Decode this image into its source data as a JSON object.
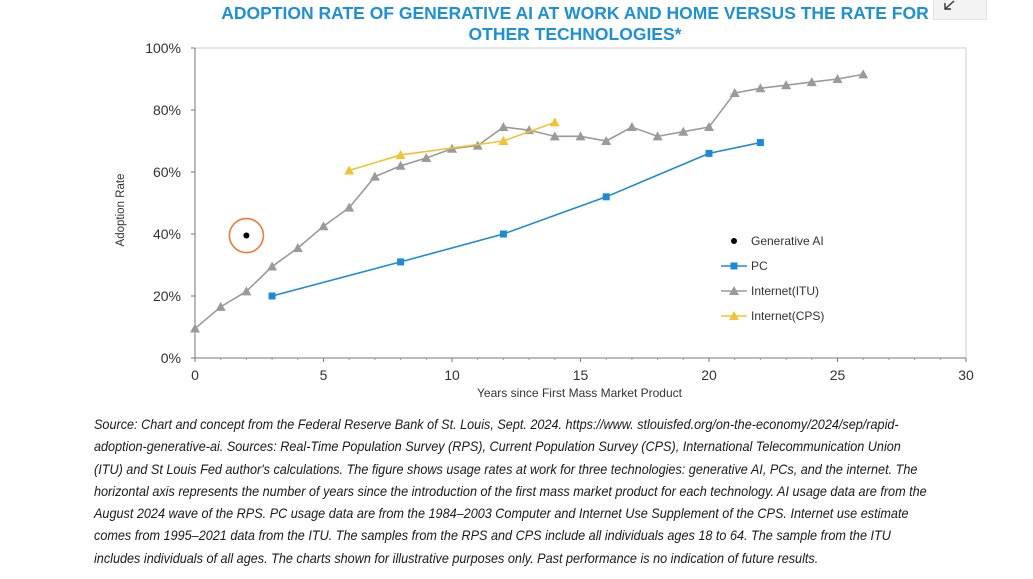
{
  "colors": {
    "title": "#1e90d6",
    "generative_ai": "#000000",
    "pc": "#1e8ad6",
    "internet_itu": "#9a9a9a",
    "internet_cps": "#f1c232",
    "highlight_circle": "#f07a35"
  },
  "icons": {
    "expand": "expand-arrow-icon"
  },
  "chart_data": {
    "type": "line",
    "title": "ADOPTION RATE OF GENERATIVE AI AT WORK AND HOME VERSUS THE RATE FOR OTHER TECHNOLOGIES*",
    "xlabel": "Years since First Mass Market Product",
    "ylabel": "Adoption Rate",
    "xlim": [
      0,
      30
    ],
    "ylim": [
      0,
      100
    ],
    "xticks": [
      "0",
      "5",
      "10",
      "15",
      "20",
      "25",
      "30"
    ],
    "xtick_values": [
      0,
      5,
      10,
      15,
      20,
      25,
      30
    ],
    "yticks": [
      "0%",
      "20%",
      "40%",
      "60%",
      "80%",
      "100%"
    ],
    "ytick_values": [
      0,
      20,
      40,
      60,
      80,
      100
    ],
    "legend_position": "center-right",
    "grid": false,
    "series": [
      {
        "name": "Generative AI",
        "marker": "circle",
        "line": false,
        "highlighted": true,
        "x": [
          2
        ],
        "y": [
          39.5
        ]
      },
      {
        "name": "PC",
        "marker": "square",
        "x": [
          3,
          8,
          12,
          16,
          20,
          22
        ],
        "y": [
          20,
          31,
          40,
          52,
          66,
          69.5
        ]
      },
      {
        "name": "Internet(ITU)",
        "marker": "triangle",
        "x": [
          0,
          1,
          2,
          3,
          4,
          5,
          6,
          7,
          8,
          9,
          10,
          11,
          12,
          13,
          14,
          15,
          16,
          17,
          18,
          19,
          20,
          21,
          22,
          23,
          24,
          25,
          26
        ],
        "y": [
          9.5,
          16.5,
          21.5,
          29.5,
          35.5,
          42.5,
          48.5,
          58.5,
          62,
          64.5,
          67.5,
          68.5,
          74.5,
          73.5,
          71.5,
          71.5,
          70,
          74.5,
          71.5,
          73,
          74.5,
          85.5,
          87,
          88,
          89,
          90,
          91.5
        ]
      },
      {
        "name": "Internet(CPS)",
        "marker": "triangle",
        "x": [
          6,
          8,
          12,
          14
        ],
        "y": [
          60.5,
          65.5,
          70,
          76
        ]
      }
    ]
  },
  "source_text": "Source: Chart and concept from the Federal Reserve Bank of St. Louis, Sept. 2024. https://www. stlouisfed.org/on-the-economy/2024/sep/rapid-adoption-generative-ai. Sources: Real-Time Population Survey (RPS), Current Population Survey (CPS), International Telecommunication Union (ITU) and St Louis Fed author's calculations. The figure shows usage rates at work for three technologies: generative AI, PCs, and the internet. The horizontal axis represents the number of years since the introduction of the first mass market product for each technology. AI usage data are from the August 2024 wave of the RPS. PC usage data are from the 1984–2003 Computer and Internet Use Supplement of the CPS. Internet use estimate comes from 1995–2021 data from the ITU. The samples from the RPS and CPS include all individuals ages 18 to 64. The sample from the ITU includes individuals of all ages. The charts shown for illustrative purposes only. Past performance is no indication of future results."
}
